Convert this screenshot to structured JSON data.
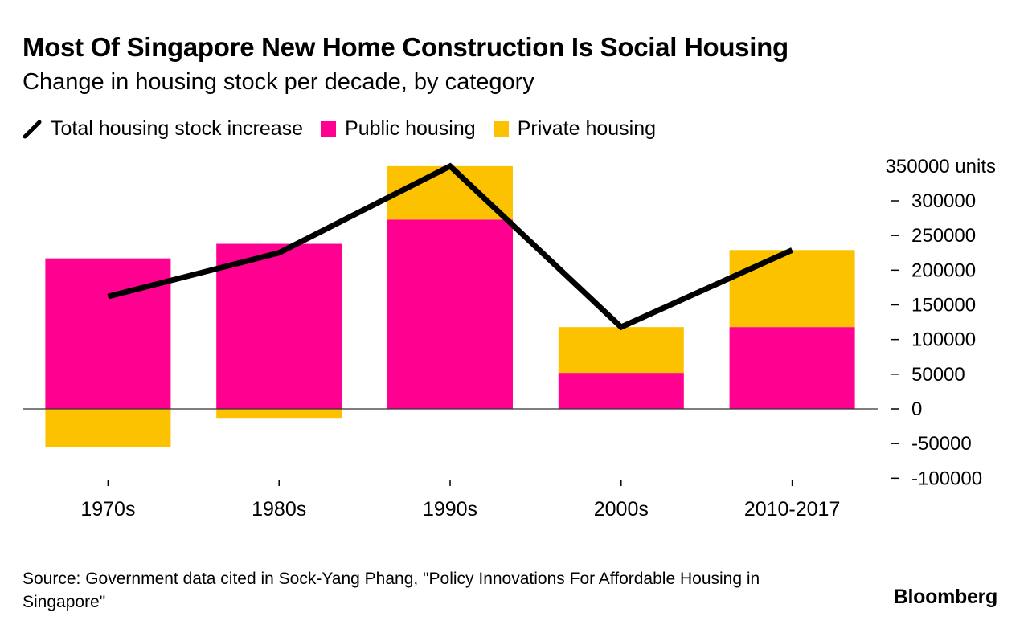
{
  "title": "Most Of Singapore New Home Construction Is Social Housing",
  "subtitle": "Change in housing stock per decade, by category",
  "legend": [
    {
      "label": "Total housing stock increase",
      "color": "#000000",
      "kind": "line"
    },
    {
      "label": "Public housing",
      "color": "#ff0090",
      "kind": "box"
    },
    {
      "label": "Private housing",
      "color": "#fcc200",
      "kind": "box"
    }
  ],
  "source": "Source: Government data cited in Sock-Yang Phang, \"Policy Innovations For Affordable Housing in Singapore\"",
  "brand": "Bloomberg",
  "chart_data": {
    "type": "bar",
    "stacked": true,
    "categories": [
      "1970s",
      "1980s",
      "1990s",
      "2000s",
      "2010-2017"
    ],
    "series": [
      {
        "name": "Public housing",
        "color": "#ff0090",
        "values": [
          217000,
          238000,
          273000,
          52000,
          118000
        ]
      },
      {
        "name": "Private housing",
        "color": "#fcc200",
        "values": [
          -55000,
          -13000,
          77000,
          66000,
          111000
        ]
      }
    ],
    "line_series": {
      "name": "Total housing stock increase",
      "color": "#000000",
      "values": [
        162000,
        225000,
        350000,
        118000,
        229000
      ]
    },
    "ylim": [
      -100000,
      350000
    ],
    "yticks": [
      350000,
      300000,
      250000,
      200000,
      150000,
      100000,
      50000,
      0,
      -50000,
      -100000
    ],
    "ytick_labels": [
      "350000 units",
      "300000",
      "250000",
      "200000",
      "150000",
      "100000",
      "50000",
      "0",
      "-50000",
      "-100000"
    ],
    "xlabel": "",
    "ylabel": "units",
    "grid": false
  }
}
